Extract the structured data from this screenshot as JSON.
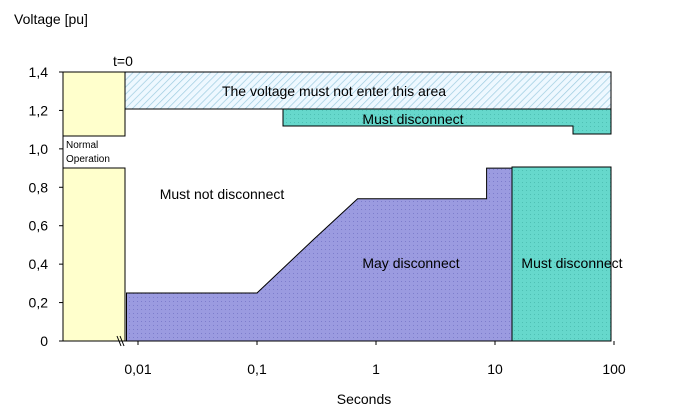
{
  "chart_data": {
    "type": "area",
    "title": "",
    "ylabel": "Voltage [pu]",
    "xlabel": "Seconds",
    "x_scale": "log",
    "ylim": [
      0,
      1.4
    ],
    "y_ticks": [
      "0",
      "0,2",
      "0,4",
      "0,6",
      "0,8",
      "1,0",
      "1,2",
      "1,4"
    ],
    "x_ticks": [
      "0,01",
      "0,1",
      "1",
      "10",
      "100"
    ],
    "t0_label": "t=0",
    "annotations": {
      "normal_operation_line1": "Normal",
      "normal_operation_line2": "Operation",
      "not_enter": "The voltage must not enter this area",
      "must_disconnect_high": "Must disconnect",
      "must_not_disconnect": "Must not disconnect",
      "may_disconnect": "May disconnect",
      "must_disconnect_low": "Must disconnect"
    },
    "regions": {
      "normal_operation": {
        "band": [
          0.88,
          1.06
        ],
        "color": "#ffffcc"
      },
      "must_not_enter": {
        "from_s": 0.008,
        "to_s": 100,
        "band": [
          1.2,
          1.4
        ]
      },
      "must_disconnect_high": {
        "from_s": 0.18,
        "to_s": 100,
        "band": [
          1.1,
          1.2
        ],
        "color": "#66d8cc"
      },
      "may_disconnect_boundary": [
        {
          "x": 0.008,
          "y": 0.25
        },
        {
          "x": 0.1,
          "y": 0.25
        },
        {
          "x": 0.3,
          "y": 0.53
        },
        {
          "x": 0.7,
          "y": 0.74
        },
        {
          "x": 8.5,
          "y": 0.74
        },
        {
          "x": 8.5,
          "y": 0.9
        },
        {
          "x": 14,
          "y": 0.9
        }
      ],
      "may_disconnect_color": "#9999dd",
      "must_disconnect_low": {
        "from_s": 14,
        "to_s": 100,
        "band": [
          0,
          0.9
        ],
        "color": "#66d8cc"
      }
    }
  }
}
